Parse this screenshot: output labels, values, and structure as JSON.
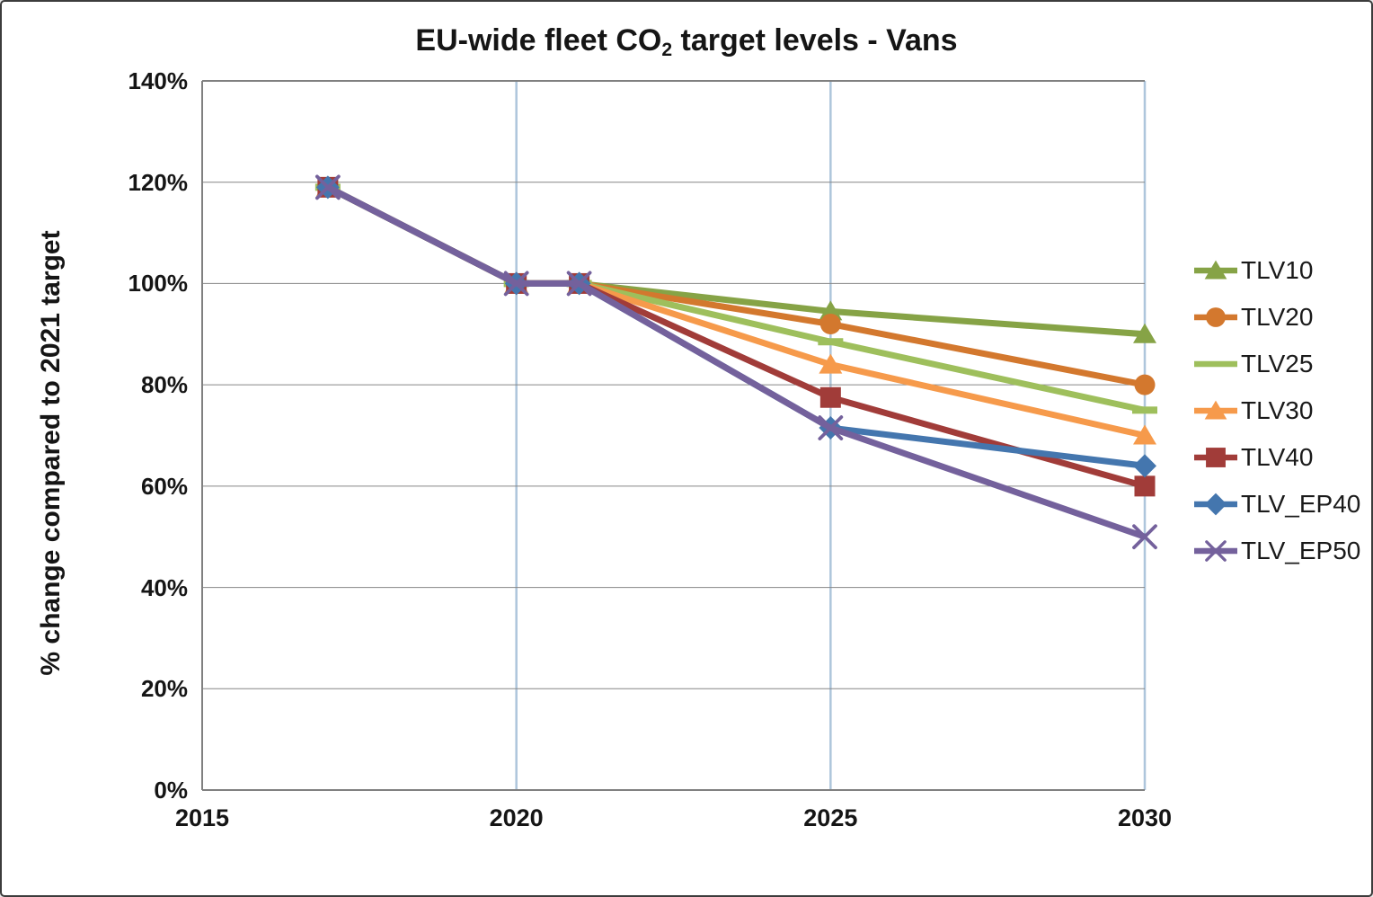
{
  "title": {
    "prefix": "EU-wide fleet CO",
    "subscript": "2",
    "suffix": " target levels - Vans"
  },
  "y_axis": {
    "title": "% change compared to 2021 target",
    "ticks": [
      {
        "label": "0%",
        "value": 0
      },
      {
        "label": "20%",
        "value": 20
      },
      {
        "label": "40%",
        "value": 40
      },
      {
        "label": "60%",
        "value": 60
      },
      {
        "label": "80%",
        "value": 80
      },
      {
        "label": "100%",
        "value": 100
      },
      {
        "label": "120%",
        "value": 120
      },
      {
        "label": "140%",
        "value": 140
      }
    ]
  },
  "x_axis": {
    "ticks": [
      {
        "label": "2015",
        "value": 2015
      },
      {
        "label": "2020",
        "value": 2020
      },
      {
        "label": "2025",
        "value": 2025
      },
      {
        "label": "2030",
        "value": 2030
      }
    ],
    "gridline_years": [
      2020,
      2025,
      2030
    ]
  },
  "style_colors": {
    "h_gridline": "#868686",
    "axis_line": "#808080",
    "v_gridline": "#AEC6DC",
    "text": "#151515"
  },
  "chart_data": {
    "type": "line",
    "title": "EU-wide fleet CO2 target levels - Vans",
    "xlabel": "",
    "ylabel": "% change compared to 2021 target",
    "xlim": [
      2015,
      2030
    ],
    "ylim": [
      0,
      140
    ],
    "grid": true,
    "legend_position": "right",
    "x": [
      2017,
      2020,
      2021,
      2025,
      2030
    ],
    "series": [
      {
        "name": "TLV10",
        "color": "#86A346",
        "marker": "triangle",
        "values": [
          119,
          100,
          100,
          94.5,
          90
        ]
      },
      {
        "name": "TLV20",
        "color": "#D3782E",
        "marker": "circle",
        "values": [
          119,
          100,
          100,
          92,
          80
        ]
      },
      {
        "name": "TLV25",
        "color": "#9EBF5C",
        "marker": "dash",
        "values": [
          119,
          100,
          100,
          88.5,
          75
        ]
      },
      {
        "name": "TLV30",
        "color": "#F69A4B",
        "marker": "triangle",
        "values": [
          119,
          100,
          100,
          84,
          70
        ]
      },
      {
        "name": "TLV40",
        "color": "#A13C39",
        "marker": "square",
        "values": [
          119,
          100,
          100,
          77.5,
          60
        ]
      },
      {
        "name": "TLV_EP40",
        "color": "#4476AE",
        "marker": "diamond",
        "values": [
          119,
          100,
          100,
          71.5,
          64
        ]
      },
      {
        "name": "TLV_EP50",
        "color": "#74619C",
        "marker": "x",
        "values": [
          119,
          100,
          100,
          71.5,
          50
        ]
      }
    ]
  }
}
